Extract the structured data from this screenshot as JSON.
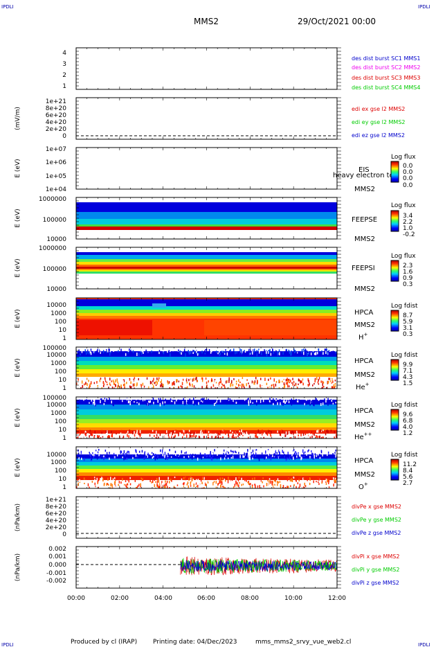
{
  "header": {
    "corner_label": "IPDLI",
    "spacecraft": "MMS2",
    "datetime": "29/Oct/2021 00:00"
  },
  "footer": {
    "produced_by": "Produced by cl (IRAP)",
    "printing_date": "Printing date: 04/Dec/2023",
    "script_name": "mms_mms2_srvy_vue_web2.cl"
  },
  "colors": {
    "blue": "#0000cc",
    "green": "#00cc00",
    "red": "#dd0000",
    "magenta": "#ee00ee"
  },
  "chart_data": [
    {
      "type": "line",
      "yticks": [
        "1",
        "2",
        "3",
        "4"
      ],
      "legend": [
        {
          "label": "des dist burst SC1 MMS1",
          "color": "#0000cc"
        },
        {
          "label": "des dist burst SC2 MMS2",
          "color": "#ee00ee"
        },
        {
          "label": "des dist burst SC3 MMS3",
          "color": "#dd0000"
        },
        {
          "label": "des dist burst SC4 MMS4",
          "color": "#00cc00"
        }
      ]
    },
    {
      "type": "line",
      "ylabel": "(mV/m)",
      "yticks": [
        "0",
        "2e+20",
        "4e+20",
        "6e+20",
        "8e+20",
        "1e+21"
      ],
      "legend": [
        {
          "label": "edi ex gse l2 MMS2",
          "color": "#dd0000"
        },
        {
          "label": "edi ey gse l2 MMS2",
          "color": "#00cc00"
        },
        {
          "label": "edi ez gse l2 MMS2",
          "color": "#0000cc"
        }
      ]
    },
    {
      "type": "heatmap",
      "ylabel": "E (eV)",
      "yticks": [
        "1e+04",
        "1e+05",
        "1e+06",
        "1e+07"
      ],
      "instrument": [
        "EIS",
        "MMS2"
      ],
      "overlay_text": "heavy electron to",
      "colorbar": {
        "title": "Log flux",
        "labels": [
          "0.0",
          "0.0",
          "0.0",
          "0.0"
        ]
      }
    },
    {
      "type": "heatmap",
      "ylabel": "E (eV)",
      "yticks": [
        "10000",
        "100000",
        "1000000"
      ],
      "instrument": [
        "FEEPSE",
        "MMS2"
      ],
      "colorbar": {
        "title": "Log flux",
        "labels": [
          "3.4",
          "2.2",
          "1.0",
          "-0.2"
        ]
      }
    },
    {
      "type": "heatmap",
      "ylabel": "E (eV)",
      "yticks": [
        "10000",
        "100000",
        "1000000"
      ],
      "instrument": [
        "FEEPSI",
        "MMS2"
      ],
      "colorbar": {
        "title": "Log flux",
        "labels": [
          "2.3",
          "1.6",
          "0.9",
          "0.3"
        ]
      }
    },
    {
      "type": "heatmap",
      "ylabel": "E (eV)",
      "yticks": [
        "1",
        "10",
        "100",
        "1000",
        "10000"
      ],
      "instrument": [
        "HPCA",
        "MMS2"
      ],
      "species": "H",
      "charge": "+",
      "colorbar": {
        "title": "Log fdist",
        "labels": [
          "8.7",
          "5.9",
          "3.1",
          "0.3"
        ]
      }
    },
    {
      "type": "heatmap",
      "ylabel": "E (eV)",
      "yticks": [
        "1",
        "10",
        "100",
        "1000",
        "10000",
        "100000"
      ],
      "instrument": [
        "HPCA",
        "MMS2"
      ],
      "species": "He",
      "charge": "+",
      "colorbar": {
        "title": "Log fdist",
        "labels": [
          "9.9",
          "7.1",
          "4.3",
          "1.5"
        ]
      }
    },
    {
      "type": "heatmap",
      "ylabel": "E (eV)",
      "yticks": [
        "1",
        "10",
        "100",
        "1000",
        "10000",
        "100000"
      ],
      "instrument": [
        "HPCA",
        "MMS2"
      ],
      "species": "He",
      "charge": "++",
      "colorbar": {
        "title": "Log fdist",
        "labels": [
          "9.6",
          "6.8",
          "4.0",
          "1.2"
        ]
      }
    },
    {
      "type": "heatmap",
      "ylabel": "E (eV)",
      "yticks": [
        "1",
        "10",
        "100",
        "1000",
        "10000"
      ],
      "instrument": [
        "HPCA",
        "MMS2"
      ],
      "species": "O",
      "charge": "+",
      "colorbar": {
        "title": "Log fdist",
        "labels": [
          "11.2",
          "8.4",
          "5.6",
          "2.7"
        ]
      }
    },
    {
      "type": "line",
      "ylabel": "(nPa/km)",
      "yticks": [
        "0",
        "2e+20",
        "4e+20",
        "6e+20",
        "8e+20",
        "1e+21"
      ],
      "legend": [
        {
          "label": "divPe x gse MMS2",
          "color": "#dd0000"
        },
        {
          "label": "divPe y gse MMS2",
          "color": "#00cc00"
        },
        {
          "label": "divPe z gse MMS2",
          "color": "#0000cc"
        }
      ]
    },
    {
      "type": "line",
      "ylabel": "(nPa/km)",
      "yticks": [
        "-0.002",
        "-0.001",
        "0.000",
        "0.001",
        "0.002"
      ],
      "ylim": [
        -0.0025,
        0.0022
      ],
      "data_start_hour": 4.8,
      "legend": [
        {
          "label": "divPi x gse MMS2",
          "color": "#dd0000"
        },
        {
          "label": "divPi y gse MMS2",
          "color": "#00cc00"
        },
        {
          "label": "divPi z gse MMS2",
          "color": "#0000cc"
        }
      ]
    }
  ],
  "xaxis": {
    "ticks": [
      "00:00",
      "02:00",
      "04:00",
      "06:00",
      "08:00",
      "10:00",
      "12:00"
    ],
    "range_hours": [
      0,
      12
    ]
  }
}
